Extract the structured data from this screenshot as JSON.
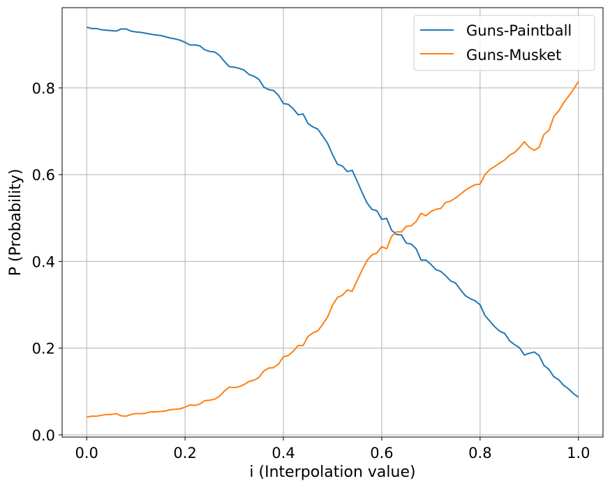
{
  "chart_data": {
    "type": "line",
    "xlabel": "i (Interpolation value)",
    "ylabel": "P (Probability)",
    "xlim": [
      -0.05,
      1.05
    ],
    "ylim": [
      -0.005,
      0.985
    ],
    "xticks": [
      0.0,
      0.2,
      0.4,
      0.6,
      0.8,
      1.0
    ],
    "xtick_labels": [
      "0.0",
      "0.2",
      "0.4",
      "0.6",
      "0.8",
      "1.0"
    ],
    "yticks": [
      0.0,
      0.2,
      0.4,
      0.6,
      0.8
    ],
    "ytick_labels": [
      "0.0",
      "0.2",
      "0.4",
      "0.6",
      "0.8"
    ],
    "grid": true,
    "legend_position": "top-right",
    "x": [
      0.0,
      0.01,
      0.02,
      0.03,
      0.04,
      0.05,
      0.06,
      0.07,
      0.08,
      0.09,
      0.1,
      0.11,
      0.12,
      0.13,
      0.14,
      0.15,
      0.16,
      0.17,
      0.18,
      0.19,
      0.2,
      0.21,
      0.22,
      0.23,
      0.24,
      0.25,
      0.26,
      0.27,
      0.28,
      0.29,
      0.3,
      0.31,
      0.32,
      0.33,
      0.34,
      0.35,
      0.36,
      0.37,
      0.38,
      0.39,
      0.4,
      0.41,
      0.42,
      0.43,
      0.44,
      0.45,
      0.46,
      0.47,
      0.48,
      0.49,
      0.5,
      0.51,
      0.52,
      0.53,
      0.54,
      0.55,
      0.56,
      0.57,
      0.58,
      0.59,
      0.6,
      0.61,
      0.62,
      0.63,
      0.64,
      0.65,
      0.66,
      0.67,
      0.68,
      0.69,
      0.7,
      0.71,
      0.72,
      0.73,
      0.74,
      0.75,
      0.76,
      0.77,
      0.78,
      0.79,
      0.8,
      0.81,
      0.82,
      0.83,
      0.84,
      0.85,
      0.86,
      0.87,
      0.88,
      0.89,
      0.9,
      0.91,
      0.92,
      0.93,
      0.94,
      0.95,
      0.96,
      0.97,
      0.98,
      0.99,
      1.0
    ],
    "series": [
      {
        "name": "Guns-Paintball",
        "color": "#1f77b4",
        "values": [
          0.94,
          0.937,
          0.937,
          0.934,
          0.933,
          0.932,
          0.931,
          0.936,
          0.936,
          0.931,
          0.929,
          0.928,
          0.926,
          0.924,
          0.922,
          0.921,
          0.918,
          0.915,
          0.913,
          0.91,
          0.905,
          0.899,
          0.899,
          0.897,
          0.888,
          0.884,
          0.883,
          0.875,
          0.861,
          0.849,
          0.848,
          0.845,
          0.841,
          0.831,
          0.827,
          0.82,
          0.802,
          0.796,
          0.794,
          0.783,
          0.764,
          0.762,
          0.752,
          0.738,
          0.74,
          0.718,
          0.71,
          0.705,
          0.689,
          0.672,
          0.646,
          0.624,
          0.62,
          0.607,
          0.61,
          0.585,
          0.559,
          0.535,
          0.52,
          0.517,
          0.497,
          0.499,
          0.472,
          0.462,
          0.461,
          0.442,
          0.44,
          0.429,
          0.403,
          0.403,
          0.393,
          0.381,
          0.377,
          0.367,
          0.355,
          0.35,
          0.335,
          0.321,
          0.314,
          0.309,
          0.3,
          0.275,
          0.262,
          0.249,
          0.239,
          0.234,
          0.217,
          0.208,
          0.201,
          0.184,
          0.188,
          0.191,
          0.183,
          0.16,
          0.151,
          0.134,
          0.127,
          0.114,
          0.106,
          0.095,
          0.087
        ]
      },
      {
        "name": "Guns-Musket",
        "color": "#ff7f0e",
        "values": [
          0.041,
          0.043,
          0.043,
          0.045,
          0.047,
          0.047,
          0.049,
          0.044,
          0.043,
          0.047,
          0.049,
          0.049,
          0.05,
          0.053,
          0.053,
          0.054,
          0.055,
          0.058,
          0.059,
          0.06,
          0.064,
          0.069,
          0.068,
          0.071,
          0.079,
          0.08,
          0.082,
          0.089,
          0.101,
          0.11,
          0.109,
          0.111,
          0.116,
          0.123,
          0.126,
          0.132,
          0.147,
          0.154,
          0.155,
          0.163,
          0.18,
          0.183,
          0.193,
          0.206,
          0.206,
          0.227,
          0.235,
          0.24,
          0.255,
          0.272,
          0.299,
          0.317,
          0.322,
          0.334,
          0.331,
          0.356,
          0.38,
          0.402,
          0.415,
          0.419,
          0.434,
          0.429,
          0.458,
          0.468,
          0.468,
          0.481,
          0.482,
          0.492,
          0.511,
          0.505,
          0.515,
          0.52,
          0.522,
          0.536,
          0.539,
          0.546,
          0.555,
          0.564,
          0.571,
          0.577,
          0.578,
          0.6,
          0.612,
          0.619,
          0.627,
          0.634,
          0.645,
          0.651,
          0.662,
          0.676,
          0.663,
          0.656,
          0.663,
          0.693,
          0.702,
          0.734,
          0.747,
          0.766,
          0.781,
          0.797,
          0.815
        ]
      }
    ]
  }
}
